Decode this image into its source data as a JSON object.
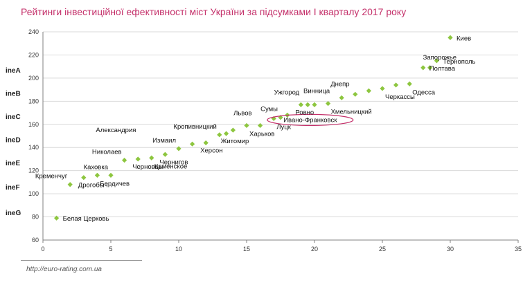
{
  "source": "http://euro-rating.com.ua",
  "chart_data": {
    "type": "scatter",
    "title": "Рейтинги інвестиційної ефективності міст України за підсумками І кварталу 2017 року",
    "xlabel": "",
    "ylabel": "",
    "xlim": [
      0,
      35
    ],
    "ylim": [
      60,
      240
    ],
    "x_ticks": [
      0,
      5,
      10,
      15,
      20,
      25,
      30,
      35
    ],
    "y_ticks": [
      60,
      80,
      100,
      120,
      140,
      160,
      180,
      200,
      220,
      240
    ],
    "grid": "horizontal",
    "marker_color": "#8dc63f",
    "highlight_color": "#c4306a",
    "rating_bands": [
      {
        "label": "ineA",
        "y": 207
      },
      {
        "label": "ineB",
        "y": 187
      },
      {
        "label": "ineC",
        "y": 167
      },
      {
        "label": "ineD",
        "y": 147
      },
      {
        "label": "ineE",
        "y": 127
      },
      {
        "label": "ineF",
        "y": 106
      },
      {
        "label": "ineG",
        "y": 84
      }
    ],
    "points": [
      {
        "x": 1,
        "y": 79,
        "label": "Белая Церковь",
        "pos": "right"
      },
      {
        "x": 2,
        "y": 108,
        "label": "Кременчуг",
        "pos": "upleft"
      },
      {
        "x": 3,
        "y": 114,
        "label": "Дрогобыч",
        "pos": "down"
      },
      {
        "x": 4,
        "y": 116,
        "label": "Бердичев",
        "pos": "downright"
      },
      {
        "x": 5,
        "y": 116,
        "label": "Каховка",
        "pos": "upleft"
      },
      {
        "x": 6,
        "y": 129,
        "label": "Николаев",
        "pos": "upleft"
      },
      {
        "x": 7,
        "y": 130,
        "label": "Черновцы",
        "pos": "down"
      },
      {
        "x": 8,
        "y": 131,
        "label": "Каменское",
        "pos": "downright"
      },
      {
        "x": 9,
        "y": 134,
        "label": "Чернигов",
        "pos": "down"
      },
      {
        "x": 10,
        "y": 139,
        "label": "Измаил",
        "pos": "upleft"
      },
      {
        "x": 11,
        "y": 143,
        "label": "",
        "pos": "none"
      },
      {
        "x": 12,
        "y": 144,
        "label": "Херсон",
        "pos": "down"
      },
      {
        "x": 13,
        "y": 151,
        "label": "Кропивницкий",
        "pos": "upleft"
      },
      {
        "x": 13.5,
        "y": 152,
        "label": "Житомир",
        "pos": "down"
      },
      {
        "x": 14,
        "y": 155,
        "label": "Александрия",
        "pos": "farleft"
      },
      {
        "x": 15,
        "y": 159,
        "label": "Харьков",
        "pos": "downright"
      },
      {
        "x": 16,
        "y": 159,
        "label": "Львов",
        "pos": "upleft2"
      },
      {
        "x": 17,
        "y": 165,
        "label": "Луцк",
        "pos": "downright"
      },
      {
        "x": 17.5,
        "y": 166,
        "label": "Сумы",
        "pos": "upleft"
      },
      {
        "x": 18,
        "y": 168,
        "label": "Ивано-Франковск",
        "pos": "highlight"
      },
      {
        "x": 19,
        "y": 177,
        "label": "Ровно",
        "pos": "down"
      },
      {
        "x": 19.5,
        "y": 177,
        "label": "Ужгород",
        "pos": "upleft2"
      },
      {
        "x": 20,
        "y": 177,
        "label": "Винница",
        "pos": "up"
      },
      {
        "x": 21,
        "y": 178,
        "label": "Хмельницкий",
        "pos": "downright"
      },
      {
        "x": 22,
        "y": 183,
        "label": "Днепр",
        "pos": "up"
      },
      {
        "x": 23,
        "y": 186,
        "label": "",
        "pos": "none"
      },
      {
        "x": 24,
        "y": 189,
        "label": "",
        "pos": "none"
      },
      {
        "x": 25,
        "y": 191,
        "label": "Черкассы",
        "pos": "downright"
      },
      {
        "x": 26,
        "y": 194,
        "label": "",
        "pos": "none"
      },
      {
        "x": 27,
        "y": 195,
        "label": "Одесса",
        "pos": "downright"
      },
      {
        "x": 28,
        "y": 209,
        "label": "Полтава",
        "pos": "right"
      },
      {
        "x": 28.5,
        "y": 209,
        "label": "Запорожье",
        "pos": "down2"
      },
      {
        "x": 29,
        "y": 215,
        "label": "Тернополь",
        "pos": "right"
      },
      {
        "x": 30,
        "y": 235,
        "label": "Киев",
        "pos": "right"
      }
    ]
  }
}
